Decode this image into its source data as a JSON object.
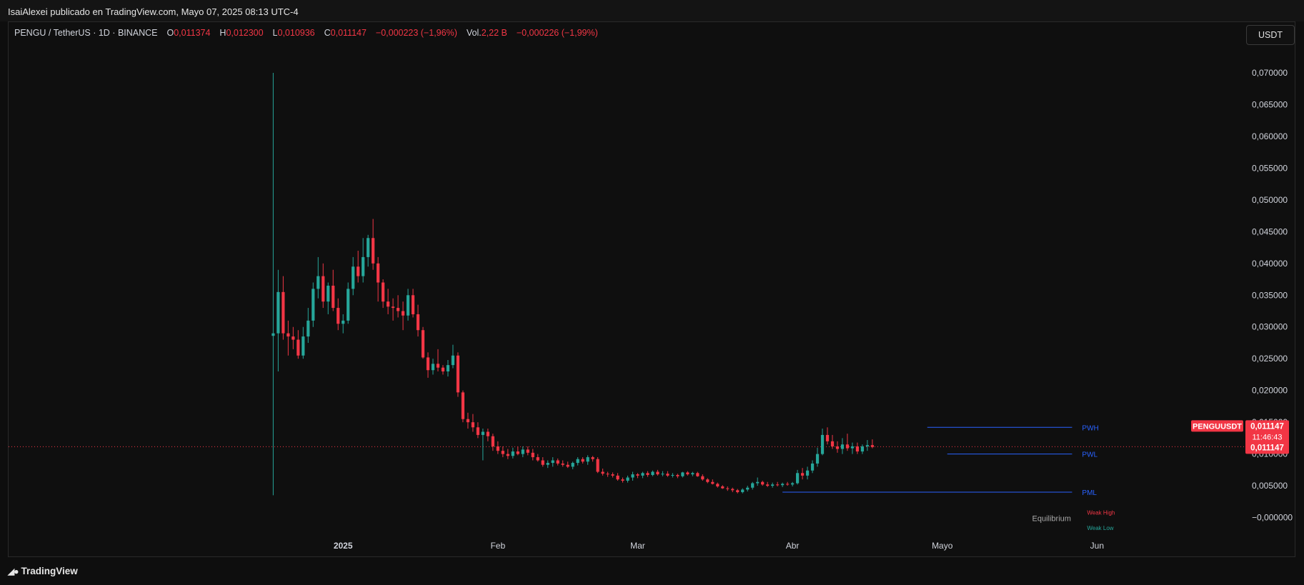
{
  "header": {
    "publisher_line": "IsaiAlexei publicado en TradingView.com, Mayo 07, 2025 08:13 UTC-4"
  },
  "legend": {
    "symbol": "PENGU / TetherUS · 1D · BINANCE",
    "open_label": "O",
    "open": "0,011374",
    "high_label": "H",
    "high": "0,012300",
    "low_label": "L",
    "low": "0,010936",
    "close_label": "C",
    "close": "0,011147",
    "change": "−0,000223 (−1,96%)",
    "vol_label": "Vol.",
    "vol": "2,22 B",
    "vol_change": "−0,000226 (−1,99%)"
  },
  "currency_button": "USDT",
  "footer": {
    "brand": "TradingView",
    "logo_icon": "tradingview-logo-icon"
  },
  "colors": {
    "up": "#26a69a",
    "down": "#f23645",
    "level_line": "#2962ff",
    "weak_high": "#f23645",
    "weak_low": "#26a69a"
  },
  "chart_data": {
    "type": "candlestick",
    "symbol": "PENGUUSDT",
    "interval": "1D",
    "y_axis": {
      "ticks": [
        "0,070000",
        "0,065000",
        "0,060000",
        "0,055000",
        "0,050000",
        "0,045000",
        "0,040000",
        "0,035000",
        "0,030000",
        "0,025000",
        "0,020000",
        "0,015000",
        "0,010000",
        "0,005000",
        "−0,000000"
      ],
      "tick_values": [
        0.07,
        0.065,
        0.06,
        0.055,
        0.05,
        0.045,
        0.04,
        0.035,
        0.03,
        0.025,
        0.02,
        0.015,
        0.01,
        0.005,
        0.0
      ],
      "ylim": [
        -0.0023,
        0.0745
      ]
    },
    "x_axis": {
      "labels": [
        "2025",
        "Feb",
        "Mar",
        "Abr",
        "Mayo",
        "Jun"
      ],
      "label_days": [
        0,
        31,
        59,
        90,
        120,
        151
      ],
      "xlim": [
        -67,
        181
      ]
    },
    "last_price": {
      "label": "PENGUUSDT",
      "value": "0,011147",
      "countdown": "11:46:43",
      "value2": "0,011147",
      "numeric": 0.011147
    },
    "levels": [
      {
        "name": "PWH",
        "value": 0.0142,
        "from_day": 117,
        "to_day": 146
      },
      {
        "name": "PWL",
        "value": 0.01,
        "from_day": 121,
        "to_day": 146
      },
      {
        "name": "PML",
        "value": 0.004,
        "from_day": 88,
        "to_day": 146
      }
    ],
    "annotations": [
      {
        "text": "Weak High",
        "day": 149,
        "value": 0.0009
      },
      {
        "text": "Equilibrium",
        "day": 138,
        "value": -0.0001
      },
      {
        "text": "Weak Low",
        "day": 149,
        "value": -0.0015
      }
    ],
    "candles_start_day": -14,
    "candles": [
      [
        0.0286,
        0.07,
        0.0035,
        0.029
      ],
      [
        0.029,
        0.039,
        0.023,
        0.0355
      ],
      [
        0.0355,
        0.038,
        0.028,
        0.029
      ],
      [
        0.029,
        0.031,
        0.0255,
        0.0285
      ],
      [
        0.0285,
        0.03,
        0.0265,
        0.028
      ],
      [
        0.028,
        0.0295,
        0.025,
        0.0255
      ],
      [
        0.0255,
        0.03,
        0.025,
        0.0285
      ],
      [
        0.0285,
        0.033,
        0.0275,
        0.031
      ],
      [
        0.031,
        0.037,
        0.03,
        0.036
      ],
      [
        0.036,
        0.041,
        0.0345,
        0.038
      ],
      [
        0.038,
        0.04,
        0.033,
        0.034
      ],
      [
        0.034,
        0.037,
        0.032,
        0.0365
      ],
      [
        0.0365,
        0.039,
        0.0325,
        0.033
      ],
      [
        0.033,
        0.0345,
        0.0295,
        0.0305
      ],
      [
        0.0305,
        0.032,
        0.029,
        0.031
      ],
      [
        0.031,
        0.037,
        0.0305,
        0.036
      ],
      [
        0.036,
        0.041,
        0.035,
        0.0395
      ],
      [
        0.0395,
        0.042,
        0.037,
        0.038
      ],
      [
        0.038,
        0.044,
        0.037,
        0.041
      ],
      [
        0.041,
        0.0445,
        0.0395,
        0.044
      ],
      [
        0.044,
        0.047,
        0.039,
        0.04
      ],
      [
        0.04,
        0.041,
        0.034,
        0.037
      ],
      [
        0.037,
        0.0375,
        0.033,
        0.034
      ],
      [
        0.034,
        0.036,
        0.032,
        0.0332
      ],
      [
        0.0332,
        0.0345,
        0.031,
        0.033
      ],
      [
        0.033,
        0.035,
        0.0315,
        0.0325
      ],
      [
        0.0325,
        0.034,
        0.0295,
        0.0318
      ],
      [
        0.0318,
        0.036,
        0.031,
        0.035
      ],
      [
        0.035,
        0.036,
        0.0315,
        0.032
      ],
      [
        0.032,
        0.0335,
        0.0285,
        0.0295
      ],
      [
        0.0295,
        0.03,
        0.025,
        0.0252
      ],
      [
        0.0252,
        0.026,
        0.022,
        0.0232
      ],
      [
        0.0232,
        0.025,
        0.0225,
        0.0242
      ],
      [
        0.0242,
        0.0265,
        0.023,
        0.0236
      ],
      [
        0.0236,
        0.024,
        0.0225,
        0.023
      ],
      [
        0.023,
        0.0248,
        0.0222,
        0.024
      ],
      [
        0.024,
        0.0272,
        0.0235,
        0.0255
      ],
      [
        0.0255,
        0.026,
        0.019,
        0.0197
      ],
      [
        0.0197,
        0.02,
        0.015,
        0.0155
      ],
      [
        0.0155,
        0.0165,
        0.014,
        0.015
      ],
      [
        0.015,
        0.0163,
        0.0135,
        0.0142
      ],
      [
        0.0142,
        0.015,
        0.0125,
        0.013
      ],
      [
        0.013,
        0.014,
        0.009,
        0.0135
      ],
      [
        0.0135,
        0.014,
        0.012,
        0.0128
      ],
      [
        0.0128,
        0.0132,
        0.0105,
        0.0112
      ],
      [
        0.0112,
        0.012,
        0.01,
        0.0105
      ],
      [
        0.0105,
        0.0112,
        0.0095,
        0.01
      ],
      [
        0.01,
        0.0108,
        0.0092,
        0.0097
      ],
      [
        0.0097,
        0.011,
        0.0093,
        0.0104
      ],
      [
        0.0104,
        0.0112,
        0.0098,
        0.01
      ],
      [
        0.01,
        0.0112,
        0.0095,
        0.0107
      ],
      [
        0.0107,
        0.0112,
        0.0098,
        0.0102
      ],
      [
        0.0102,
        0.0108,
        0.009,
        0.0095
      ],
      [
        0.0095,
        0.01,
        0.0088,
        0.009
      ],
      [
        0.009,
        0.0095,
        0.008,
        0.0083
      ],
      [
        0.0083,
        0.009,
        0.0078,
        0.0086
      ],
      [
        0.0086,
        0.0095,
        0.008,
        0.009
      ],
      [
        0.009,
        0.0093,
        0.0082,
        0.0085
      ],
      [
        0.0085,
        0.009,
        0.008,
        0.0083
      ],
      [
        0.0083,
        0.0088,
        0.0078,
        0.008
      ],
      [
        0.008,
        0.0088,
        0.0076,
        0.0086
      ],
      [
        0.0086,
        0.0095,
        0.0082,
        0.0092
      ],
      [
        0.0092,
        0.0095,
        0.0085,
        0.0088
      ],
      [
        0.0088,
        0.0098,
        0.0083,
        0.0095
      ],
      [
        0.0095,
        0.0097,
        0.0088,
        0.0092
      ],
      [
        0.0092,
        0.0095,
        0.007,
        0.0072
      ],
      [
        0.0072,
        0.0077,
        0.0066,
        0.0069
      ],
      [
        0.0069,
        0.0072,
        0.0064,
        0.0068
      ],
      [
        0.0068,
        0.0071,
        0.0063,
        0.0066
      ],
      [
        0.0066,
        0.007,
        0.0058,
        0.006
      ],
      [
        0.006,
        0.0063,
        0.0055,
        0.0058
      ],
      [
        0.0058,
        0.0066,
        0.0055,
        0.0063
      ],
      [
        0.0063,
        0.0072,
        0.0058,
        0.0068
      ],
      [
        0.0068,
        0.007,
        0.0062,
        0.0066
      ],
      [
        0.0066,
        0.0072,
        0.0062,
        0.007
      ],
      [
        0.007,
        0.0073,
        0.0064,
        0.0067
      ],
      [
        0.0067,
        0.0074,
        0.0065,
        0.0072
      ],
      [
        0.0072,
        0.0075,
        0.0066,
        0.0068
      ],
      [
        0.0068,
        0.0073,
        0.0065,
        0.0069
      ],
      [
        0.0069,
        0.0073,
        0.0064,
        0.0066
      ],
      [
        0.0066,
        0.007,
        0.0063,
        0.0067
      ],
      [
        0.0067,
        0.0069,
        0.0062,
        0.0065
      ],
      [
        0.0065,
        0.0072,
        0.0063,
        0.0071
      ],
      [
        0.0071,
        0.0073,
        0.0066,
        0.0068
      ],
      [
        0.0068,
        0.0072,
        0.0065,
        0.007
      ],
      [
        0.007,
        0.0072,
        0.0064,
        0.0065
      ],
      [
        0.0065,
        0.0068,
        0.0058,
        0.006
      ],
      [
        0.006,
        0.0062,
        0.0054,
        0.0056
      ],
      [
        0.0056,
        0.006,
        0.0052,
        0.0053
      ],
      [
        0.0053,
        0.0055,
        0.0047,
        0.0049
      ],
      [
        0.0049,
        0.0051,
        0.0045,
        0.0046
      ],
      [
        0.0046,
        0.0049,
        0.0042,
        0.0045
      ],
      [
        0.0045,
        0.0047,
        0.004,
        0.0043
      ],
      [
        0.0043,
        0.0045,
        0.0038,
        0.004
      ],
      [
        0.004,
        0.0046,
        0.0038,
        0.0044
      ],
      [
        0.0044,
        0.005,
        0.0041,
        0.0047
      ],
      [
        0.0047,
        0.0056,
        0.0044,
        0.0054
      ],
      [
        0.0054,
        0.0063,
        0.005,
        0.0056
      ],
      [
        0.0056,
        0.0058,
        0.005,
        0.0052
      ],
      [
        0.0052,
        0.0056,
        0.0048,
        0.005
      ],
      [
        0.005,
        0.0055,
        0.0047,
        0.0052
      ],
      [
        0.0052,
        0.0056,
        0.0049,
        0.0051
      ],
      [
        0.0051,
        0.0055,
        0.0048,
        0.0053
      ],
      [
        0.0053,
        0.0056,
        0.005,
        0.0052
      ],
      [
        0.0052,
        0.0056,
        0.0049,
        0.0054
      ],
      [
        0.0054,
        0.0075,
        0.0052,
        0.007
      ],
      [
        0.007,
        0.0078,
        0.006,
        0.0066
      ],
      [
        0.0066,
        0.008,
        0.006,
        0.0074
      ],
      [
        0.0074,
        0.009,
        0.007,
        0.0085
      ],
      [
        0.0085,
        0.011,
        0.008,
        0.01
      ],
      [
        0.01,
        0.014,
        0.0098,
        0.013
      ],
      [
        0.013,
        0.0142,
        0.0115,
        0.012
      ],
      [
        0.012,
        0.013,
        0.0108,
        0.0112
      ],
      [
        0.0112,
        0.012,
        0.0102,
        0.0108
      ],
      [
        0.0108,
        0.0125,
        0.01,
        0.0115
      ],
      [
        0.0115,
        0.0132,
        0.0105,
        0.0109
      ],
      [
        0.0109,
        0.0118,
        0.01,
        0.0112
      ],
      [
        0.0112,
        0.0118,
        0.01,
        0.0104
      ],
      [
        0.0104,
        0.0115,
        0.01,
        0.0112
      ],
      [
        0.0112,
        0.0122,
        0.0105,
        0.0114
      ],
      [
        0.0114,
        0.0123,
        0.0109,
        0.0111
      ]
    ]
  }
}
